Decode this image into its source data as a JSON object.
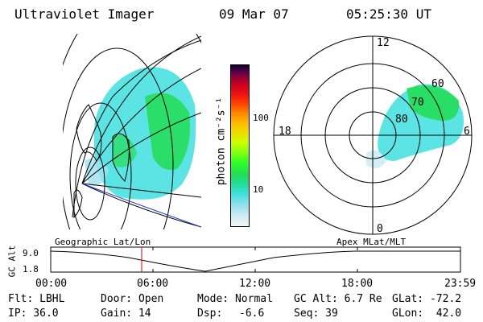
{
  "header": {
    "instrument": "Ultraviolet Imager",
    "date": "09 Mar 07",
    "time": "05:25:30 UT"
  },
  "colorbar": {
    "label": "photon cm⁻²s⁻¹",
    "ticks": [
      "100",
      "10"
    ],
    "colors": [
      "#f4f4f4",
      "#d0ecf4",
      "#9fe1ee",
      "#40dfdf",
      "#22dd99",
      "#22dd55",
      "#33ff22",
      "#88ff11",
      "#ccff00",
      "#eedd00",
      "#ffbb00",
      "#ff8800",
      "#ff4400",
      "#ee1111",
      "#cc0022",
      "#990033",
      "#660044",
      "#330044",
      "#110022"
    ]
  },
  "polar_plot": {
    "mlt_labels": [
      "12",
      "18",
      "6",
      "0"
    ],
    "mlat_labels": [
      "60",
      "70",
      "80"
    ]
  },
  "timeline": {
    "left_title": "Geographic Lat/Lon",
    "right_title": "Apex MLat/MLT",
    "axis_label": "GC Alt",
    "y_ticks": [
      "9.0",
      "1.8"
    ],
    "x_ticks": [
      "00:00",
      "06:00",
      "12:00",
      "18:00",
      "23:59"
    ],
    "marker_color": "#dd0000"
  },
  "info": {
    "flt": "Flt: LBHL",
    "ip": "IP: 36.0",
    "door": "Door: Open",
    "gain": "Gain: 14",
    "mode": "Mode: Normal",
    "dsp_label": "Dsp:",
    "dsp_value": "-6.6",
    "gc_alt": "GC Alt: 6.7 Re",
    "seq": "Seq: 39",
    "glat": "GLat: -72.2",
    "glon": "GLon:  42.0"
  },
  "colors": {
    "aurora_cyan": "#40dfdf",
    "aurora_green": "#22dd55",
    "coast_blue": "#2233cc"
  }
}
